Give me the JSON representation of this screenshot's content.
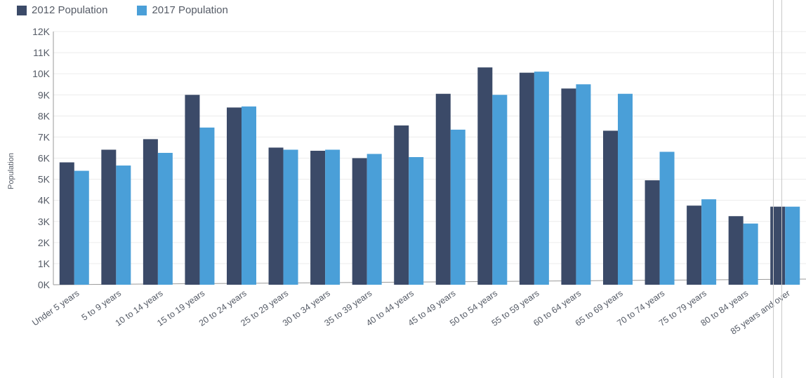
{
  "chart_data": {
    "type": "bar",
    "ylabel": "Population",
    "ylim": [
      0,
      12000
    ],
    "grid": true,
    "legend_position": "top-left",
    "y_ticks": [
      "0K",
      "1K",
      "2K",
      "3K",
      "4K",
      "5K",
      "6K",
      "7K",
      "8K",
      "9K",
      "10K",
      "11K",
      "12K"
    ],
    "categories": [
      "Under 5 years",
      "5 to 9 years",
      "10 to 14 years",
      "15 to 19 years",
      "20 to 24 years",
      "25 to 29 years",
      "30 to 34 years",
      "35 to 39 years",
      "40 to 44 years",
      "45 to 49 years",
      "50 to 54 years",
      "55 to 59 years",
      "60 to 64 years",
      "65 to 69 years",
      "70 to 74 years",
      "75 to 79 years",
      "80 to 84 years",
      "85 years and over"
    ],
    "series": [
      {
        "name": "2012 Population",
        "color": "#3b4a68",
        "values": [
          5800,
          6400,
          6900,
          9000,
          8400,
          6500,
          6350,
          6000,
          7550,
          9050,
          10300,
          10050,
          9300,
          7300,
          4950,
          3750,
          3250,
          3700
        ]
      },
      {
        "name": "2017 Population",
        "color": "#4a9fd8",
        "values": [
          5400,
          5650,
          6250,
          7450,
          8450,
          6400,
          6400,
          6200,
          6050,
          7350,
          9000,
          10100,
          9500,
          9050,
          6300,
          4050,
          2900,
          3700
        ]
      }
    ]
  }
}
